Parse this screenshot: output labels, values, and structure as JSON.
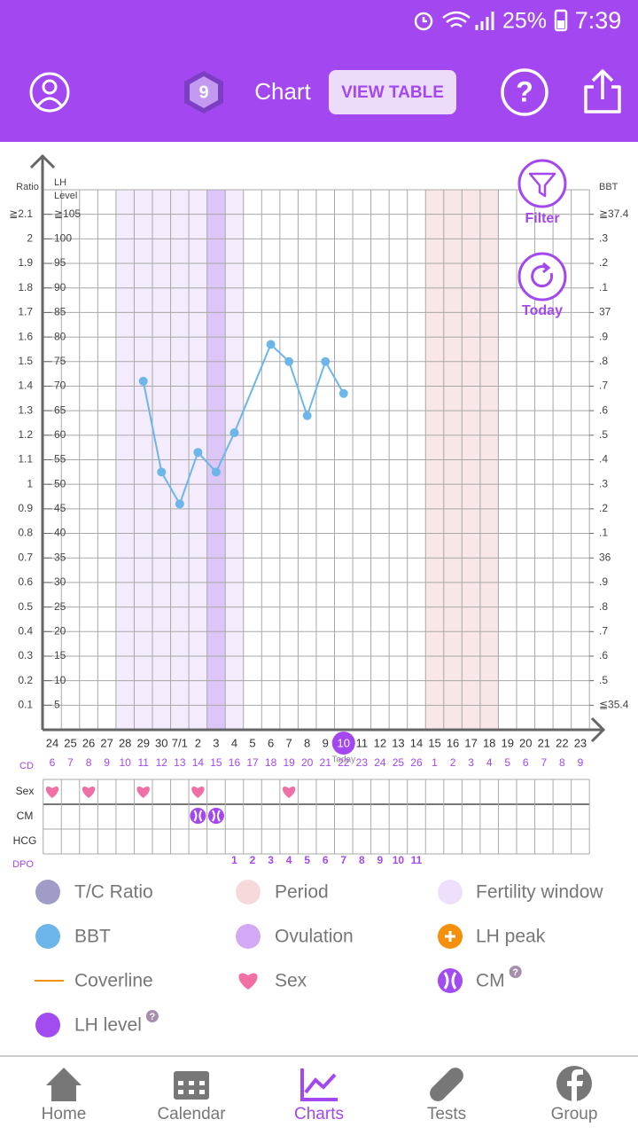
{
  "status_bar": {
    "battery": "25%",
    "time": "7:39"
  },
  "header": {
    "badge": "9",
    "title": "Chart",
    "view_table": "VIEW TABLE",
    "help": "?"
  },
  "chart": {
    "ratio_label": "Ratio",
    "lh_label": [
      "LH",
      "Level"
    ],
    "bbt_label": "BBT",
    "ratio_lim": [
      0,
      2.2
    ],
    "ratio_ticks": [
      {
        "value": 2.1,
        "label": "≧2.1"
      },
      2,
      1.9,
      1.8,
      1.7,
      1.6,
      1.5,
      1.4,
      1.3,
      1.2,
      1.1,
      1,
      0.9,
      0.8,
      0.7,
      0.6,
      0.5,
      0.4,
      0.3,
      0.2,
      0.1
    ],
    "lh_lim": [
      0,
      110
    ],
    "lh_ticks": [
      {
        "value": 105,
        "label": "≧105"
      },
      100,
      95,
      90,
      85,
      80,
      75,
      70,
      65,
      60,
      55,
      50,
      45,
      40,
      35,
      30,
      25,
      20,
      15,
      10,
      5
    ],
    "bbt_lim": [
      35.3,
      37.5
    ],
    "bbt_ticks": [
      {
        "value": 37.4,
        "label": "≧37.4"
      },
      {
        "value": 37.3,
        "label": ".3"
      },
      {
        "value": 37.2,
        "label": ".2"
      },
      {
        "value": 37.1,
        "label": ".1"
      },
      37,
      {
        "value": 36.9,
        "label": ".9"
      },
      {
        "value": 36.8,
        "label": ".8"
      },
      {
        "value": 36.7,
        "label": ".7"
      },
      {
        "value": 36.6,
        "label": ".6"
      },
      {
        "value": 36.5,
        "label": ".5"
      },
      {
        "value": 36.4,
        "label": ".4"
      },
      {
        "value": 36.3,
        "label": ".3"
      },
      {
        "value": 36.2,
        "label": ".2"
      },
      {
        "value": 36.1,
        "label": ".1"
      },
      36,
      {
        "value": 35.9,
        "label": ".9"
      },
      {
        "value": 35.8,
        "label": ".8"
      },
      {
        "value": 35.7,
        "label": ".7"
      },
      {
        "value": 35.6,
        "label": ".6"
      },
      {
        "value": 35.5,
        "label": ".5"
      },
      {
        "value": 35.4,
        "label": "≦35.4"
      }
    ],
    "dates": [
      "24",
      "25",
      "26",
      "27",
      "28",
      "29",
      "30",
      "7/1",
      "2",
      "3",
      "4",
      "5",
      "6",
      "7",
      "8",
      "9",
      "10",
      "11",
      "12",
      "13",
      "14",
      "15",
      "16",
      "17",
      "18",
      "19",
      "20",
      "21",
      "22",
      "23"
    ],
    "cd_label": "CD",
    "cd": [
      6,
      7,
      8,
      9,
      10,
      11,
      12,
      13,
      14,
      15,
      16,
      17,
      18,
      19,
      20,
      21,
      22,
      23,
      24,
      25,
      26,
      1,
      2,
      3,
      4,
      5,
      6,
      7,
      8,
      9
    ],
    "today": "10",
    "today_label": "Today",
    "bbt": {
      "color": "#6cb6ea",
      "x": [
        "29",
        "30",
        "7/1",
        "2",
        "3",
        "4",
        "6",
        "7",
        "8",
        "9",
        "10"
      ],
      "values": [
        36.72,
        36.35,
        36.22,
        36.43,
        36.35,
        36.51,
        36.87,
        36.8,
        36.58,
        36.8,
        36.67
      ]
    },
    "fertility_window": {
      "color": "#f4ebfd",
      "from": "28",
      "to": "4"
    },
    "ovulation": {
      "color": "#dcc6f7",
      "date": "3"
    },
    "period": {
      "color": "#f9e6e6",
      "from": "15",
      "to": "18"
    },
    "buttons": [
      {
        "label": "Filter"
      },
      {
        "label": "Today"
      }
    ]
  },
  "log": {
    "rows": [
      "Sex",
      "CM",
      "HCG"
    ],
    "sex": [
      "24",
      "26",
      "29",
      "2",
      "7"
    ],
    "cm": [
      "2",
      "3"
    ],
    "dpo_label": "DPO",
    "dpo": [
      null,
      null,
      null,
      null,
      null,
      null,
      null,
      null,
      null,
      null,
      1,
      2,
      3,
      4,
      5,
      6,
      7,
      8,
      9,
      10,
      11,
      null,
      null,
      null,
      null,
      null,
      null,
      null,
      null,
      null
    ]
  },
  "legend": [
    {
      "label": "T/C Ratio",
      "icon": "circle",
      "color": "#a09cc8"
    },
    {
      "label": "Period",
      "icon": "circle",
      "color": "#f7d9dc"
    },
    {
      "label": "Fertility window",
      "icon": "circle",
      "color": "#eedffc"
    },
    {
      "label": "BBT",
      "icon": "circle",
      "color": "#6cb6ea"
    },
    {
      "label": "Ovulation",
      "icon": "circle",
      "color": "#d3a9f5"
    },
    {
      "label": "LH peak",
      "icon": "plus",
      "color": "#f4900c"
    },
    {
      "label": "Coverline",
      "icon": "line",
      "color": "#f4900c"
    },
    {
      "label": "Sex",
      "icon": "heart",
      "color": "#f06fa5"
    },
    {
      "label": "CM",
      "icon": "cm",
      "color": "#a24bf0",
      "help": "?"
    },
    {
      "label": "LH level",
      "icon": "circle",
      "color": "#a24bf0",
      "help": "?"
    }
  ],
  "nav": [
    {
      "label": "Home"
    },
    {
      "label": "Calendar"
    },
    {
      "label": "Charts"
    },
    {
      "label": "Tests"
    },
    {
      "label": "Group"
    }
  ],
  "nav_active": "Charts"
}
